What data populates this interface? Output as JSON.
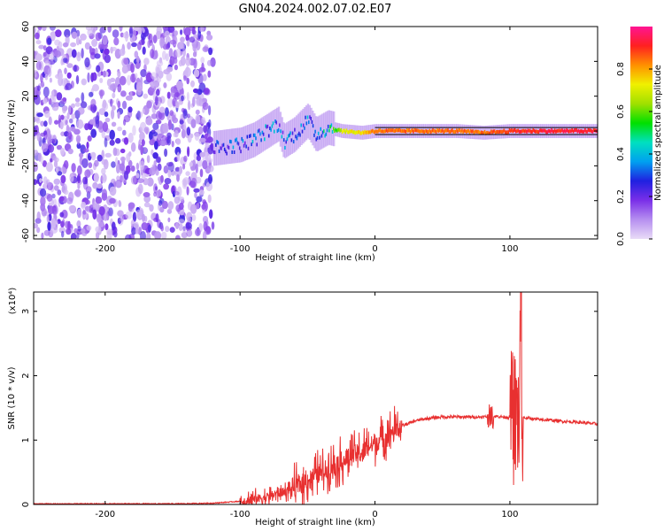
{
  "title": "GN04.2024.002.07.02.E07",
  "chart_data": [
    {
      "type": "heatmap",
      "xlabel": "Height of straight line (km)",
      "ylabel": "Frequency (Hz)",
      "xlim": [
        -253,
        165
      ],
      "ylim": [
        -62,
        60
      ],
      "x_ticks": [
        -200,
        -100,
        0,
        100
      ],
      "y_ticks": [
        -60,
        -40,
        -20,
        0,
        20,
        40,
        60
      ],
      "colorbar": {
        "label": "Normalized spectral amplitude",
        "range": [
          0,
          1
        ],
        "ticks": [
          0.0,
          0.2,
          0.4,
          0.6,
          0.8
        ],
        "colormap": [
          "#e9dcf7",
          "#b68ff0",
          "#7a2fe8",
          "#2020e0",
          "#00a0f0",
          "#00e0c0",
          "#00e000",
          "#a0e000",
          "#f0f000",
          "#ff9000",
          "#ff2020",
          "#ff1493"
        ]
      },
      "noise_region_x": [
        -253,
        -120
      ],
      "ridge": [
        {
          "x": -120,
          "y": -10,
          "amp": 0.22
        },
        {
          "x": -110,
          "y": -9,
          "amp": 0.3
        },
        {
          "x": -100,
          "y": -8,
          "amp": 0.3
        },
        {
          "x": -90,
          "y": -5,
          "amp": 0.32
        },
        {
          "x": -80,
          "y": 0,
          "amp": 0.32
        },
        {
          "x": -72,
          "y": 4,
          "amp": 0.3
        },
        {
          "x": -68,
          "y": -6,
          "amp": 0.3
        },
        {
          "x": -60,
          "y": -2,
          "amp": 0.32
        },
        {
          "x": -50,
          "y": 6,
          "amp": 0.32
        },
        {
          "x": -44,
          "y": -2,
          "amp": 0.34
        },
        {
          "x": -35,
          "y": 2,
          "amp": 0.4
        },
        {
          "x": -25,
          "y": 0,
          "amp": 0.7
        },
        {
          "x": -10,
          "y": -1,
          "amp": 0.75
        },
        {
          "x": 0,
          "y": 0,
          "amp": 0.85
        },
        {
          "x": 30,
          "y": 0,
          "amp": 0.85
        },
        {
          "x": 60,
          "y": 0,
          "amp": 0.85
        },
        {
          "x": 80,
          "y": -1,
          "amp": 0.85
        },
        {
          "x": 100,
          "y": 0,
          "amp": 0.9
        },
        {
          "x": 130,
          "y": 0,
          "amp": 0.92
        },
        {
          "x": 165,
          "y": 0,
          "amp": 0.92
        }
      ]
    },
    {
      "type": "line",
      "xlabel": "Height of straight line (km)",
      "ylabel": "SNR (10 * v/v)",
      "y_multiplier": "(x10⁴)",
      "xlim": [
        -253,
        165
      ],
      "ylim": [
        0,
        3.3
      ],
      "x_ticks": [
        -200,
        -100,
        0,
        100
      ],
      "y_ticks": [
        0,
        1,
        2,
        3
      ],
      "line_color": "#e83030",
      "series": [
        {
          "x": [
            -253,
            -200,
            -150,
            -120,
            -100,
            -90,
            -80,
            -70,
            -60,
            -50,
            -40,
            -30,
            -20,
            -10,
            0,
            10,
            20,
            30,
            40,
            50,
            60,
            70,
            80,
            90,
            100,
            110,
            120,
            130,
            140,
            150,
            165
          ],
          "values": [
            0.01,
            0.01,
            0.01,
            0.02,
            0.05,
            0.08,
            0.12,
            0.18,
            0.25,
            0.38,
            0.5,
            0.62,
            0.72,
            0.82,
            0.95,
            1.1,
            1.22,
            1.3,
            1.34,
            1.36,
            1.36,
            1.36,
            1.36,
            1.37,
            1.35,
            1.35,
            1.32,
            1.31,
            1.29,
            1.28,
            1.25
          ]
        }
      ]
    }
  ]
}
